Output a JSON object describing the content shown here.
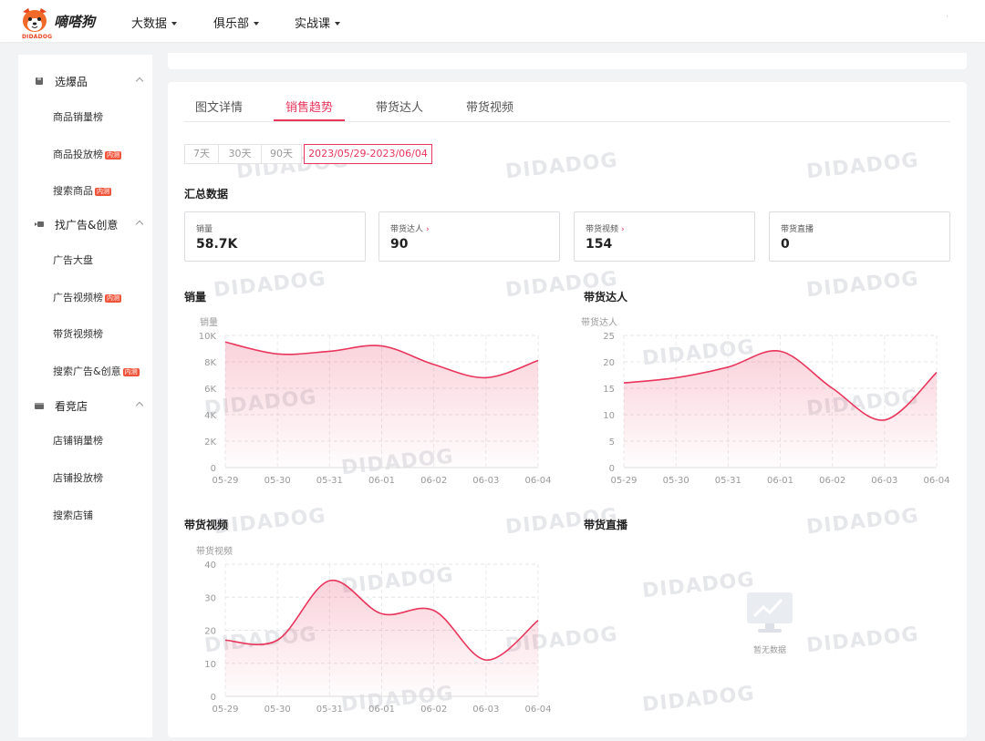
{
  "header": {
    "logo_sub": "DIDADOG",
    "logo_name": "嘀嗒狗",
    "nav": [
      {
        "label": "大数据"
      },
      {
        "label": "俱乐部"
      },
      {
        "label": "实战课"
      }
    ],
    "dot": "·"
  },
  "sidebar": {
    "groups": [
      {
        "label": "选爆品",
        "icon": "box-icon",
        "items": [
          {
            "label": "商品销量榜",
            "badge": ""
          },
          {
            "label": "商品投放榜",
            "badge": "内测"
          },
          {
            "label": "搜索商品",
            "badge": "内测"
          }
        ]
      },
      {
        "label": "找广告&创意",
        "icon": "video-icon",
        "items": [
          {
            "label": "广告大盘",
            "badge": ""
          },
          {
            "label": "广告视频榜",
            "badge": "内测"
          },
          {
            "label": "带货视频榜",
            "badge": ""
          },
          {
            "label": "搜索广告&创意",
            "badge": "内测"
          }
        ]
      },
      {
        "label": "看竞店",
        "icon": "store-icon",
        "items": [
          {
            "label": "店铺销量榜",
            "badge": ""
          },
          {
            "label": "店铺投放榜",
            "badge": ""
          },
          {
            "label": "搜索店铺",
            "badge": ""
          }
        ]
      }
    ]
  },
  "tabs": [
    {
      "label": "图文详情",
      "active": false
    },
    {
      "label": "销售趋势",
      "active": true
    },
    {
      "label": "带货达人",
      "active": false
    },
    {
      "label": "带货视频",
      "active": false
    }
  ],
  "ranges": [
    "7天",
    "30天",
    "90天"
  ],
  "date_range": "2023/05/29-2023/06/04",
  "summary": {
    "title": "汇总数据",
    "stats": [
      {
        "label": "销量",
        "value": "58.7K",
        "link": false
      },
      {
        "label": "带货达人",
        "value": "90",
        "link": true
      },
      {
        "label": "带货视频",
        "value": "154",
        "link": true
      },
      {
        "label": "带货直播",
        "value": "0",
        "link": false
      }
    ]
  },
  "watermark": "DIDADOG",
  "colors": {
    "accent": "#e8355c",
    "brand": "#e8451e"
  },
  "live": {
    "title": "带货直播",
    "empty_label": "暂无数据"
  },
  "chart_data": [
    {
      "type": "area",
      "title": "销量",
      "ylabel": "销量",
      "x": [
        "05-29",
        "05-30",
        "05-31",
        "06-01",
        "06-02",
        "06-03",
        "06-04"
      ],
      "y_ticks": [
        "0",
        "2K",
        "4K",
        "6K",
        "8K",
        "10K"
      ],
      "ylim": [
        0,
        10000
      ],
      "series": [
        {
          "values": [
            9500,
            8600,
            8800,
            9200,
            7800,
            6800,
            8100
          ]
        }
      ],
      "grid": true
    },
    {
      "type": "area",
      "title": "带货达人",
      "ylabel": "带货达人",
      "x": [
        "05-29",
        "05-30",
        "05-31",
        "06-01",
        "06-02",
        "06-03",
        "06-04"
      ],
      "y_ticks": [
        "0",
        "5",
        "10",
        "15",
        "20",
        "25"
      ],
      "ylim": [
        0,
        25
      ],
      "series": [
        {
          "values": [
            16,
            17,
            19,
            22,
            15,
            9,
            18
          ]
        }
      ],
      "grid": true
    },
    {
      "type": "area",
      "title": "带货视频",
      "ylabel": "带货视频",
      "x": [
        "05-29",
        "05-30",
        "05-31",
        "06-01",
        "06-02",
        "06-03",
        "06-04"
      ],
      "y_ticks": [
        "0",
        "10",
        "20",
        "30",
        "40"
      ],
      "ylim": [
        0,
        40
      ],
      "series": [
        {
          "values": [
            17,
            17,
            35,
            25,
            26,
            11,
            23
          ]
        }
      ],
      "grid": true
    }
  ]
}
